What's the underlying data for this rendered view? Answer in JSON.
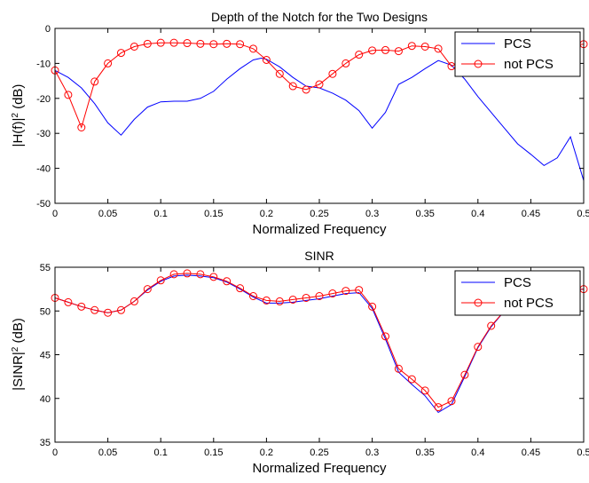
{
  "chart_data": [
    {
      "type": "line",
      "title": "Depth of the Notch for the Two Designs",
      "xlabel": "Normalized Frequency",
      "ylabel": "|H(f)|",
      "ylabel_sup": "2",
      "ylabel_suffix": " (dB)",
      "xlim": [
        0,
        0.5
      ],
      "ylim": [
        -50,
        0
      ],
      "xticks": [
        0,
        0.05,
        0.1,
        0.15,
        0.2,
        0.25,
        0.3,
        0.35,
        0.4,
        0.45,
        0.5
      ],
      "xtick_labels": [
        "0",
        "0.05",
        "0.1",
        "0.15",
        "0.2",
        "0.25",
        "0.3",
        "0.35",
        "0.4",
        "0.45",
        "0.5"
      ],
      "yticks": [
        -50,
        -40,
        -30,
        -20,
        -10,
        0
      ],
      "ytick_labels": [
        "-50",
        "-40",
        "-30",
        "-20",
        "-10",
        "0"
      ],
      "legend_position": "top-right",
      "series": [
        {
          "name": "PCS",
          "color": "#0000ff",
          "marker": "none",
          "x": [
            0,
            0.0125,
            0.025,
            0.0375,
            0.05,
            0.0625,
            0.075,
            0.0875,
            0.1,
            0.1125,
            0.125,
            0.1375,
            0.15,
            0.1625,
            0.175,
            0.1875,
            0.195,
            0.2,
            0.2125,
            0.225,
            0.2375,
            0.25,
            0.2625,
            0.275,
            0.2875,
            0.3,
            0.3125,
            0.325,
            0.3375,
            0.35,
            0.3625,
            0.375,
            0.3875,
            0.4,
            0.4125,
            0.425,
            0.4375,
            0.45,
            0.4625,
            0.475,
            0.4875,
            0.5
          ],
          "y": [
            -12,
            -14,
            -17,
            -21.5,
            -27,
            -30.5,
            -26,
            -22.5,
            -21,
            -20.8,
            -20.8,
            -20,
            -18,
            -14.5,
            -11.5,
            -9,
            -8.5,
            -8.8,
            -11,
            -14,
            -16.5,
            -17,
            -18.5,
            -20.5,
            -23.5,
            -28.5,
            -24,
            -16,
            -14,
            -11.5,
            -9.2,
            -10.5,
            -14.5,
            -19.5,
            -24,
            -28.5,
            -33,
            -36,
            -39.2,
            -37,
            -31,
            -43.5
          ]
        },
        {
          "name": "not PCS",
          "color": "#ff0000",
          "marker": "circle",
          "x": [
            0,
            0.0125,
            0.025,
            0.0375,
            0.05,
            0.0625,
            0.075,
            0.0875,
            0.1,
            0.1125,
            0.125,
            0.1375,
            0.15,
            0.1625,
            0.175,
            0.1875,
            0.2,
            0.2125,
            0.225,
            0.2375,
            0.25,
            0.2625,
            0.275,
            0.2875,
            0.3,
            0.3125,
            0.325,
            0.3375,
            0.35,
            0.3625,
            0.375,
            0.3875,
            0.4,
            0.4125,
            0.425,
            0.4375,
            0.45,
            0.4625,
            0.475,
            0.4875,
            0.5
          ],
          "y": [
            -12,
            -19,
            -28.3,
            -15.2,
            -10,
            -7,
            -5.2,
            -4.4,
            -4.1,
            -4.1,
            -4.2,
            -4.4,
            -4.5,
            -4.4,
            -4.5,
            -5.8,
            -9,
            -13,
            -16.5,
            -17.5,
            -16,
            -13,
            -10,
            -7.5,
            -6.3,
            -6.2,
            -6.5,
            -5,
            -5.2,
            -5.8,
            -10.8,
            -9,
            -7,
            -6,
            -5.3,
            -5.1,
            -5,
            -5.1,
            -5,
            -4.9,
            -4.5
          ]
        }
      ]
    },
    {
      "type": "line",
      "title": "SINR",
      "xlabel": "Normalized Frequency",
      "ylabel": "|SINR|",
      "ylabel_sup": "2",
      "ylabel_suffix": " (dB)",
      "xlim": [
        0,
        0.5
      ],
      "ylim": [
        35,
        55
      ],
      "xticks": [
        0,
        0.05,
        0.1,
        0.15,
        0.2,
        0.25,
        0.3,
        0.35,
        0.4,
        0.45,
        0.5
      ],
      "xtick_labels": [
        "0",
        "0.05",
        "0.1",
        "0.15",
        "0.2",
        "0.25",
        "0.3",
        "0.35",
        "0.4",
        "0.45",
        "0.5"
      ],
      "yticks": [
        35,
        40,
        45,
        50,
        55
      ],
      "ytick_labels": [
        "35",
        "40",
        "45",
        "50",
        "55"
      ],
      "legend_position": "top-right",
      "series": [
        {
          "name": "PCS",
          "color": "#0000ff",
          "marker": "none",
          "x": [
            0,
            0.0125,
            0.025,
            0.0375,
            0.05,
            0.0625,
            0.075,
            0.0875,
            0.1,
            0.1125,
            0.125,
            0.1375,
            0.15,
            0.1625,
            0.175,
            0.1875,
            0.2,
            0.2125,
            0.225,
            0.2375,
            0.25,
            0.2625,
            0.275,
            0.2875,
            0.3,
            0.3125,
            0.325,
            0.3375,
            0.35,
            0.3625,
            0.375,
            0.3875,
            0.4,
            0.4125,
            0.425,
            0.4375,
            0.45,
            0.4625,
            0.475,
            0.4875,
            0.5
          ],
          "y": [
            51.5,
            51,
            50.5,
            50.1,
            49.8,
            50.1,
            51.1,
            52.4,
            53.4,
            54,
            54.1,
            54,
            53.8,
            53.3,
            52.5,
            51.6,
            50.9,
            50.9,
            51,
            51.2,
            51.4,
            51.7,
            52,
            52.1,
            50.3,
            46.8,
            43,
            41.6,
            40.3,
            38.4,
            39.3,
            42.5,
            45.8,
            48.2,
            50,
            51.2,
            51.9,
            52.2,
            52.3,
            52.4,
            52.5
          ]
        },
        {
          "name": "not PCS",
          "color": "#ff0000",
          "marker": "circle",
          "x": [
            0,
            0.0125,
            0.025,
            0.0375,
            0.05,
            0.0625,
            0.075,
            0.0875,
            0.1,
            0.1125,
            0.125,
            0.1375,
            0.15,
            0.1625,
            0.175,
            0.1875,
            0.2,
            0.2125,
            0.225,
            0.2375,
            0.25,
            0.2625,
            0.275,
            0.2875,
            0.3,
            0.3125,
            0.325,
            0.3375,
            0.35,
            0.3625,
            0.375,
            0.3875,
            0.4,
            0.4125,
            0.425,
            0.4375,
            0.45,
            0.4625,
            0.475,
            0.4875,
            0.5
          ],
          "y": [
            51.5,
            51,
            50.5,
            50.1,
            49.8,
            50.1,
            51.1,
            52.5,
            53.5,
            54.2,
            54.3,
            54.2,
            53.9,
            53.4,
            52.6,
            51.7,
            51.2,
            51.1,
            51.3,
            51.5,
            51.7,
            52,
            52.3,
            52.4,
            50.5,
            47.1,
            43.4,
            42.2,
            40.9,
            39,
            39.7,
            42.7,
            45.9,
            48.3,
            50,
            51.2,
            51.9,
            52.2,
            52.3,
            52.4,
            52.5
          ]
        }
      ]
    }
  ]
}
